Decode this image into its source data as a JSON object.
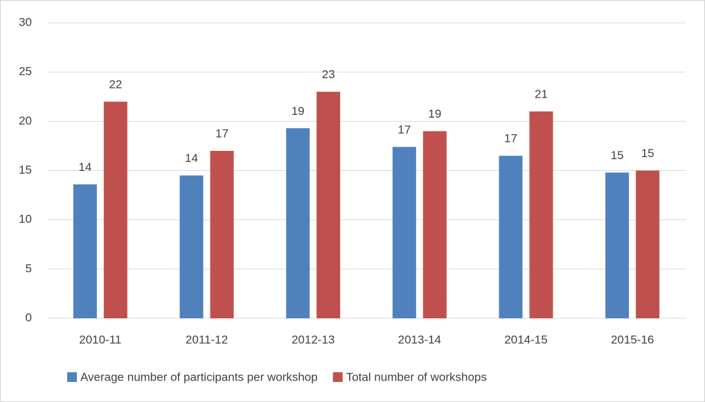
{
  "chart_data": {
    "type": "bar",
    "categories": [
      "2010-11",
      "2011-12",
      "2012-13",
      "2013-14",
      "2014-15",
      "2015-16"
    ],
    "series": [
      {
        "name": "Average number of participants per workshop",
        "color": "#4f81bd",
        "values": [
          13.6,
          14.5,
          19.3,
          17.4,
          16.5,
          14.8
        ],
        "value_labels": [
          "14",
          "14",
          "19",
          "17",
          "17",
          "15"
        ]
      },
      {
        "name": "Total number of workshops",
        "color": "#c0504d",
        "values": [
          22,
          17,
          23,
          19,
          21,
          15
        ]
      }
    ],
    "ylim": [
      0,
      30
    ],
    "yticks": [
      0,
      5,
      10,
      15,
      20,
      25,
      30
    ],
    "grid": true,
    "legend": "bottom"
  }
}
